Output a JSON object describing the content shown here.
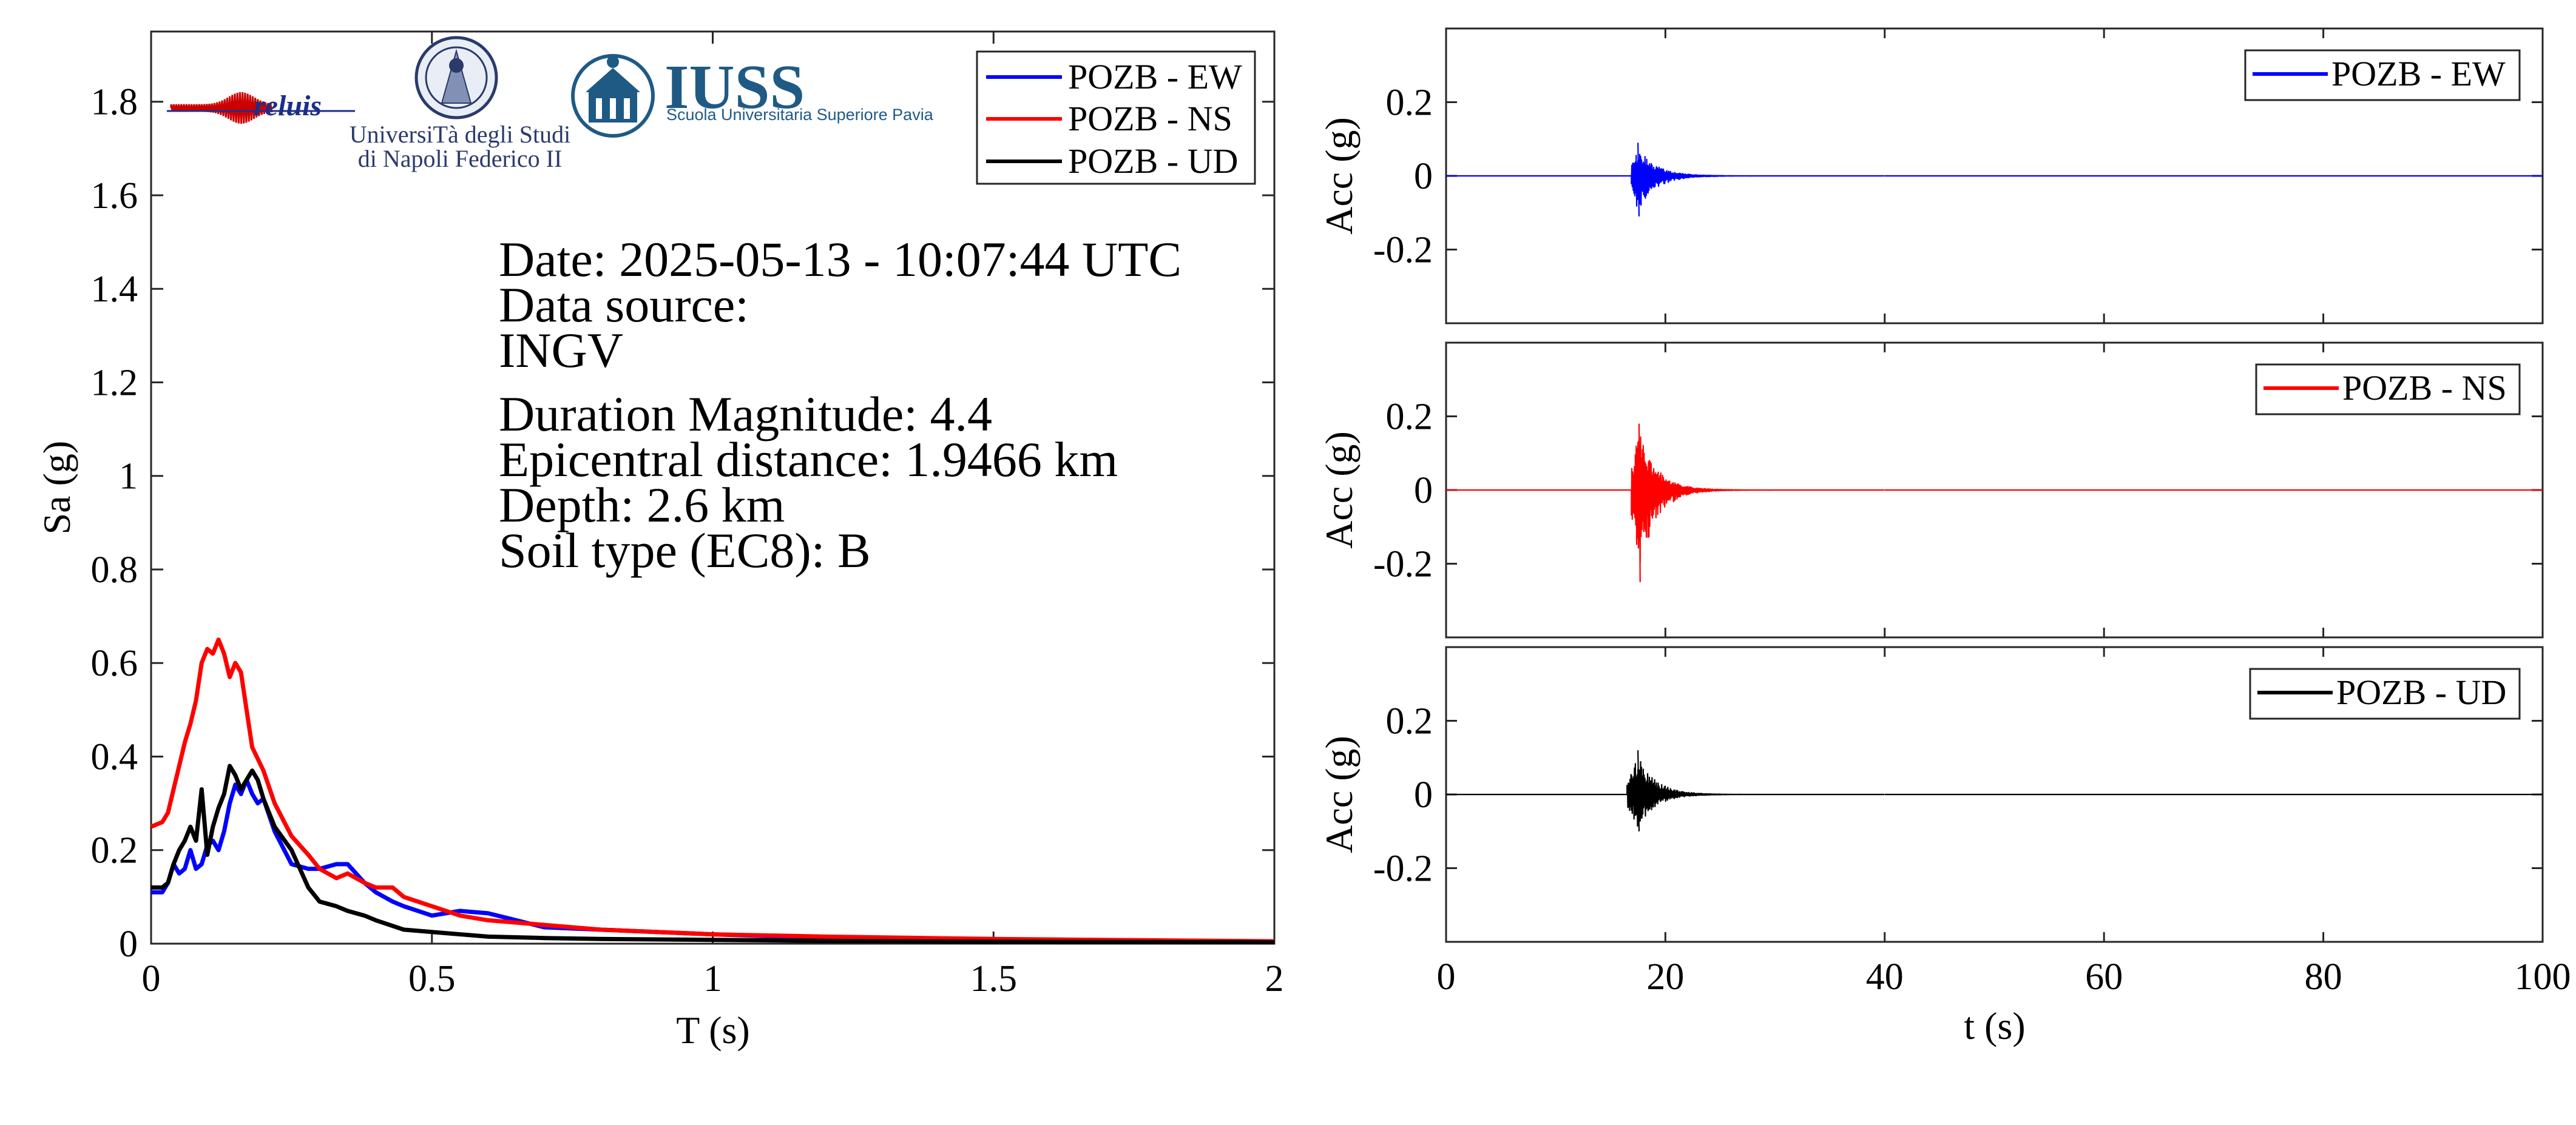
{
  "logos": {
    "reluis": "reluis",
    "unina_line1": "UniversiTà degli Studi",
    "unina_line2": "di Napoli Federico II",
    "iuss": "IUSS",
    "iuss_sub": "Scuola Universitaria Superiore Pavia"
  },
  "info": {
    "date": "Date: 2025-05-13 - 10:07:44 UTC",
    "source_label": "Data source:",
    "source": "INGV",
    "magnitude": "Duration Magnitude: 4.4",
    "distance": "Epicentral distance: 1.9466 km",
    "depth": "Depth: 2.6 km",
    "soil": "Soil type (EC8): B"
  },
  "colors": {
    "EW": "#0000ff",
    "NS": "#ff0000",
    "UD": "#000000"
  },
  "chart_data": [
    {
      "type": "line",
      "xlabel": "T (s)",
      "ylabel": "Sa (g)",
      "xlim": [
        0,
        2
      ],
      "ylim": [
        0,
        1.95
      ],
      "xticks": [
        0,
        0.5,
        1,
        1.5,
        2
      ],
      "xtick_labels": [
        "0",
        "0.5",
        "1",
        "1.5",
        "2"
      ],
      "yticks": [
        0,
        0.2,
        0.4,
        0.6,
        0.8,
        1,
        1.2,
        1.4,
        1.6,
        1.8
      ],
      "ytick_labels": [
        "0",
        "0.2",
        "0.4",
        "0.6",
        "0.8",
        "1",
        "1.2",
        "1.4",
        "1.6",
        "1.8"
      ],
      "legend_position": "top-right",
      "series": [
        {
          "name": "POZB - EW",
          "color": "#0000ff",
          "x": [
            0,
            0.02,
            0.03,
            0.04,
            0.05,
            0.06,
            0.07,
            0.08,
            0.09,
            0.1,
            0.11,
            0.12,
            0.13,
            0.14,
            0.15,
            0.16,
            0.17,
            0.18,
            0.19,
            0.2,
            0.22,
            0.25,
            0.28,
            0.3,
            0.33,
            0.35,
            0.38,
            0.4,
            0.43,
            0.45,
            0.5,
            0.55,
            0.6,
            0.65,
            0.7,
            0.8,
            0.9,
            1.0,
            1.2,
            1.5,
            1.8,
            2.0
          ],
          "y": [
            0.11,
            0.11,
            0.13,
            0.17,
            0.15,
            0.16,
            0.2,
            0.16,
            0.17,
            0.21,
            0.22,
            0.2,
            0.24,
            0.3,
            0.34,
            0.32,
            0.35,
            0.32,
            0.3,
            0.31,
            0.24,
            0.17,
            0.16,
            0.16,
            0.17,
            0.17,
            0.13,
            0.11,
            0.09,
            0.08,
            0.06,
            0.07,
            0.065,
            0.05,
            0.035,
            0.03,
            0.025,
            0.02,
            0.012,
            0.008,
            0.005,
            0.004
          ]
        },
        {
          "name": "POZB - NS",
          "color": "#ff0000",
          "x": [
            0,
            0.02,
            0.03,
            0.04,
            0.05,
            0.06,
            0.07,
            0.08,
            0.09,
            0.1,
            0.11,
            0.12,
            0.13,
            0.14,
            0.15,
            0.16,
            0.17,
            0.18,
            0.2,
            0.22,
            0.25,
            0.28,
            0.3,
            0.33,
            0.35,
            0.38,
            0.4,
            0.43,
            0.45,
            0.5,
            0.55,
            0.6,
            0.7,
            0.8,
            0.9,
            1.0,
            1.2,
            1.5,
            1.8,
            2.0
          ],
          "y": [
            0.25,
            0.26,
            0.28,
            0.33,
            0.38,
            0.43,
            0.47,
            0.52,
            0.6,
            0.63,
            0.62,
            0.65,
            0.62,
            0.57,
            0.6,
            0.58,
            0.5,
            0.42,
            0.37,
            0.3,
            0.23,
            0.19,
            0.16,
            0.14,
            0.15,
            0.13,
            0.12,
            0.12,
            0.1,
            0.08,
            0.06,
            0.05,
            0.04,
            0.03,
            0.025,
            0.02,
            0.015,
            0.01,
            0.007,
            0.005
          ]
        },
        {
          "name": "POZB - UD",
          "color": "#000000",
          "x": [
            0,
            0.02,
            0.03,
            0.04,
            0.05,
            0.06,
            0.07,
            0.08,
            0.09,
            0.1,
            0.11,
            0.12,
            0.13,
            0.14,
            0.15,
            0.16,
            0.17,
            0.18,
            0.19,
            0.2,
            0.22,
            0.25,
            0.28,
            0.3,
            0.33,
            0.35,
            0.38,
            0.4,
            0.45,
            0.5,
            0.6,
            0.7,
            0.8,
            1.0,
            1.2,
            1.5,
            2.0
          ],
          "y": [
            0.12,
            0.12,
            0.13,
            0.17,
            0.2,
            0.22,
            0.25,
            0.22,
            0.33,
            0.19,
            0.25,
            0.29,
            0.32,
            0.38,
            0.36,
            0.33,
            0.35,
            0.37,
            0.35,
            0.31,
            0.25,
            0.2,
            0.12,
            0.09,
            0.08,
            0.07,
            0.06,
            0.05,
            0.03,
            0.025,
            0.015,
            0.012,
            0.01,
            0.008,
            0.006,
            0.004,
            0.003
          ]
        }
      ]
    },
    {
      "type": "line",
      "xlabel": "",
      "ylabel": "Acc (g)",
      "xlim": [
        0,
        100
      ],
      "ylim": [
        -0.4,
        0.4
      ],
      "yticks": [
        -0.2,
        0,
        0.2
      ],
      "ytick_labels": [
        "-0.2",
        "0",
        "0.2"
      ],
      "legend_position": "top-right",
      "series": [
        {
          "name": "POZB - EW",
          "color": "#0000ff",
          "t_start": 16.9,
          "peak_pos": 0.09,
          "peak_neg": -0.11,
          "t_peak": 17.5
        }
      ]
    },
    {
      "type": "line",
      "xlabel": "",
      "ylabel": "Acc (g)",
      "xlim": [
        0,
        100
      ],
      "ylim": [
        -0.4,
        0.4
      ],
      "yticks": [
        -0.2,
        0,
        0.2
      ],
      "ytick_labels": [
        "-0.2",
        "0",
        "0.2"
      ],
      "legend_position": "top-right",
      "series": [
        {
          "name": "POZB - NS",
          "color": "#ff0000",
          "t_start": 16.9,
          "peak_pos": 0.18,
          "peak_neg": -0.25,
          "t_peak": 17.6
        }
      ]
    },
    {
      "type": "line",
      "xlabel": "t (s)",
      "ylabel": "Acc (g)",
      "xlim": [
        0,
        100
      ],
      "ylim": [
        -0.4,
        0.4
      ],
      "xticks": [
        0,
        20,
        40,
        60,
        80,
        100
      ],
      "xtick_labels": [
        "0",
        "20",
        "40",
        "60",
        "80",
        "100"
      ],
      "yticks": [
        -0.2,
        0,
        0.2
      ],
      "ytick_labels": [
        "-0.2",
        "0",
        "0.2"
      ],
      "legend_position": "top-right",
      "series": [
        {
          "name": "POZB - UD",
          "color": "#000000",
          "t_start": 16.5,
          "peak_pos": 0.12,
          "peak_neg": -0.1,
          "t_peak": 17.5
        }
      ]
    }
  ]
}
